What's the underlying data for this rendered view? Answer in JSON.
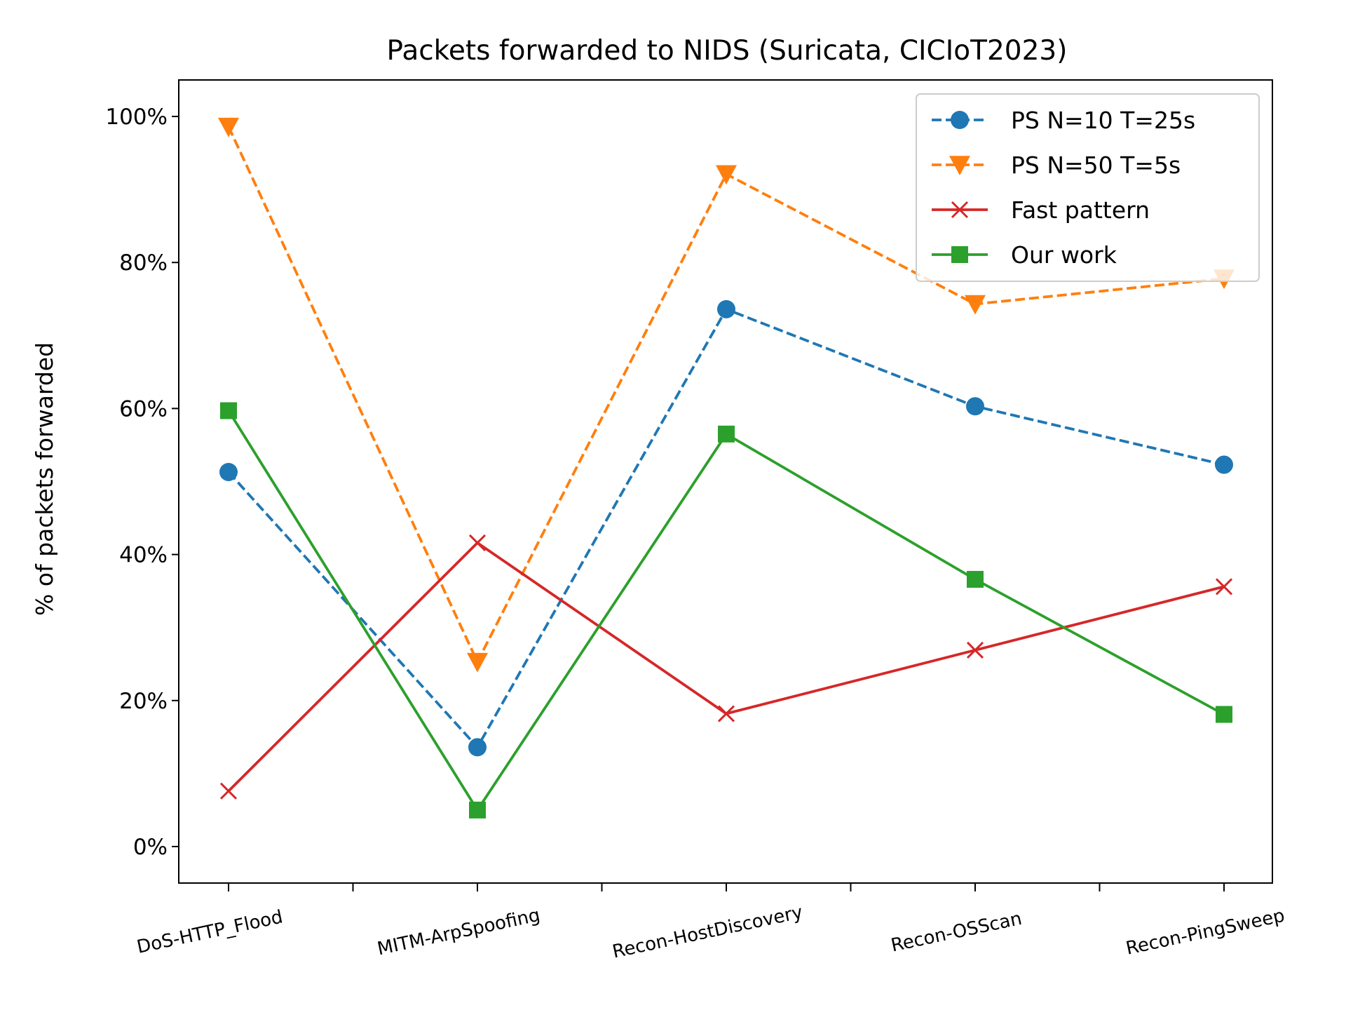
{
  "chart_data": {
    "type": "line",
    "title": "Packets forwarded to NIDS (Suricata, CICIoT2023)",
    "xlabel": "",
    "ylabel": "% of packets forwarded",
    "categories": [
      "DoS-HTTP_Flood",
      "MITM-ArpSpoofing",
      "Recon-HostDiscovery",
      "Recon-OSScan",
      "Recon-PingSweep"
    ],
    "ylim": [
      -5,
      105
    ],
    "yticks": [
      0,
      20,
      40,
      60,
      80,
      100
    ],
    "ytick_labels": [
      "0%",
      "20%",
      "40%",
      "60%",
      "80%",
      "100%"
    ],
    "grid": false,
    "legend_position": "top-right",
    "series": [
      {
        "name": "PS N=10 T=25s",
        "values": [
          51.3,
          13.6,
          73.6,
          60.3,
          52.3
        ],
        "color": "#1f77b4",
        "marker": "circle",
        "dashed": true
      },
      {
        "name": "PS N=50 T=5s",
        "values": [
          98.6,
          25.3,
          92.1,
          74.3,
          77.8
        ],
        "color": "#ff7f0e",
        "marker": "triangle-down",
        "dashed": true
      },
      {
        "name": "Fast pattern",
        "values": [
          7.6,
          41.6,
          18.2,
          26.9,
          35.6
        ],
        "color": "#d62728",
        "marker": "x",
        "dashed": false
      },
      {
        "name": "Our work",
        "values": [
          59.7,
          5.0,
          56.5,
          36.6,
          18.1
        ],
        "color": "#2ca02c",
        "marker": "square",
        "dashed": false
      }
    ]
  }
}
